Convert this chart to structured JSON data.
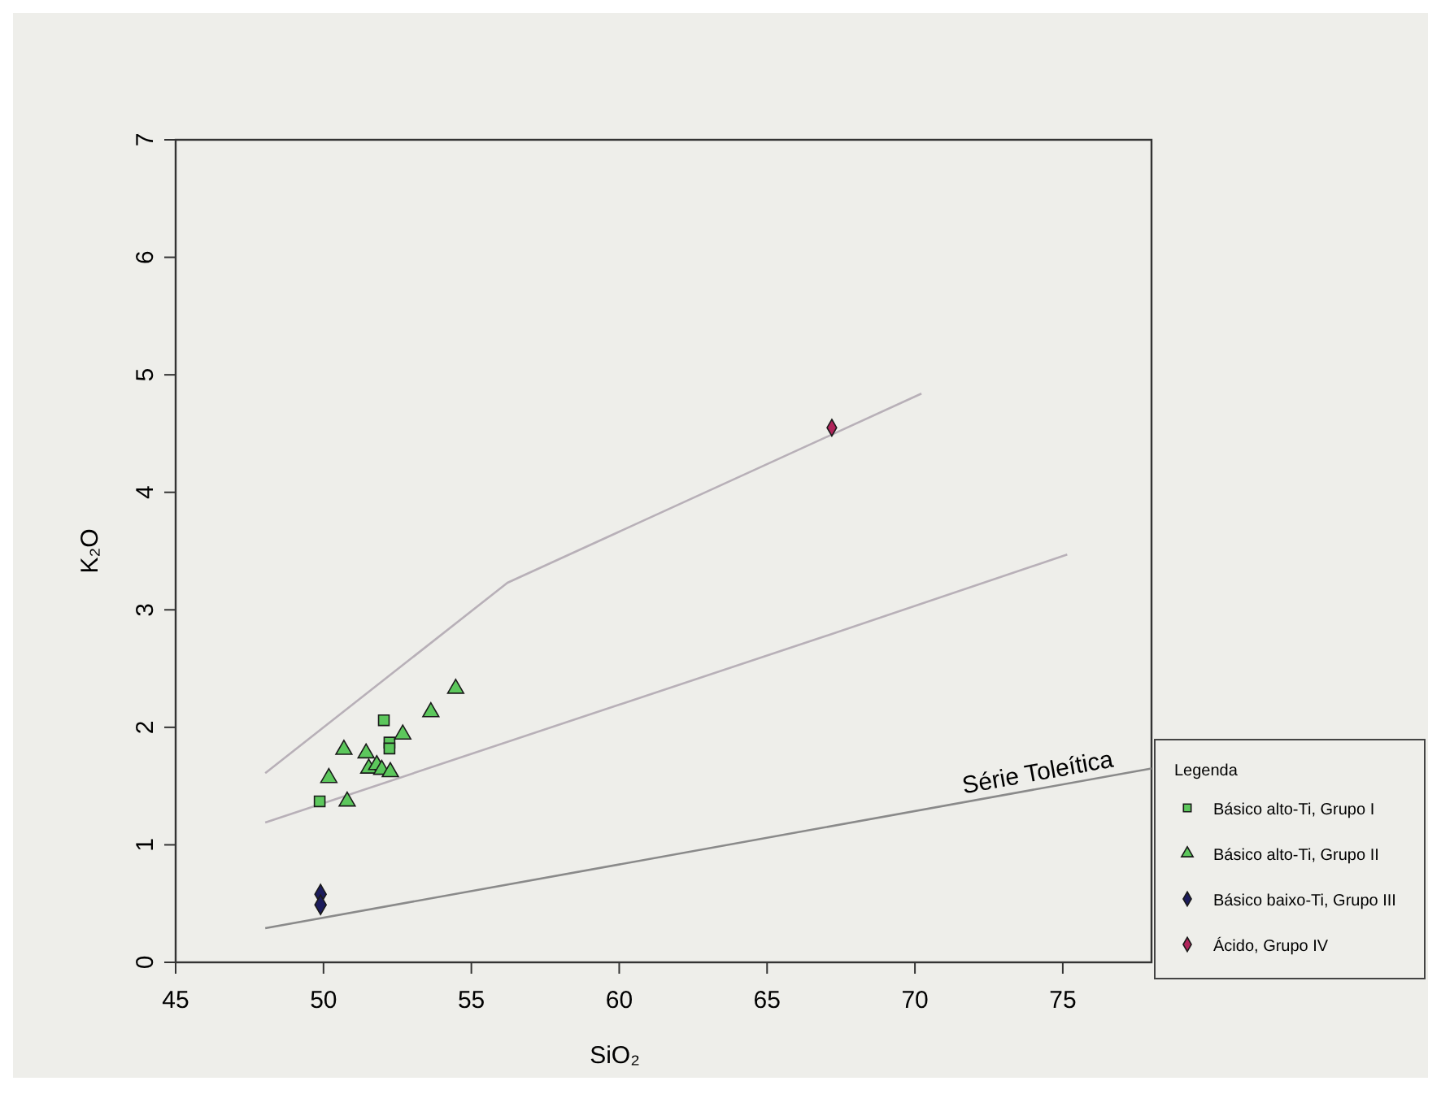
{
  "chart_data": {
    "type": "scatter",
    "xlabel": "SiO₂",
    "ylabel": "K₂O",
    "legend_title": "Legenda",
    "legend": "bottom right",
    "grid": false,
    "xlim": [
      45,
      78
    ],
    "xticks": [
      45,
      50,
      55,
      60,
      65,
      70,
      75
    ],
    "ylim": [
      0,
      7
    ],
    "yticks": [
      0,
      1,
      2,
      3,
      4,
      5,
      6,
      7
    ],
    "series": [
      {
        "name": "Básico alto-Ti, Grupo I",
        "color": "#5cc75c",
        "marker": "square",
        "x": [
          49.87,
          52.04,
          52.23,
          52.23
        ],
        "values": [
          1.37,
          2.06,
          1.87,
          1.82
        ]
      },
      {
        "name": "Básico alto-Ti, Grupo II",
        "color": "#5cc75c",
        "marker": "triangle",
        "x": [
          50.18,
          50.69,
          50.8,
          51.44,
          51.53,
          51.8,
          51.97,
          52.26,
          52.68,
          53.63,
          54.47
        ],
        "values": [
          1.57,
          1.81,
          1.37,
          1.78,
          1.65,
          1.68,
          1.64,
          1.62,
          1.94,
          2.13,
          2.33
        ]
      },
      {
        "name": "Básico baixo-Ti, Grupo III",
        "color": "#1c1c5c",
        "marker": "diamond",
        "x": [
          49.9,
          49.9
        ],
        "values": [
          0.58,
          0.49
        ]
      },
      {
        "name": "Ácido, Grupo IV",
        "color": "#b0245a",
        "marker": "diamond",
        "x": [
          67.19
        ],
        "values": [
          4.55
        ]
      },
      {
        "type": "line",
        "color": "#b8b0b8",
        "marker": "none",
        "x": [
          48.03,
          56.22,
          70.22
        ],
        "values": [
          1.61,
          3.23,
          4.84
        ]
      },
      {
        "type": "line",
        "color": "#b8b0b8",
        "marker": "none",
        "x": [
          48.03,
          66.9,
          75.15
        ],
        "values": [
          1.19,
          2.77,
          3.47
        ]
      },
      {
        "type": "line",
        "color": "#8a8a8a",
        "marker": "none",
        "x": [
          48.03,
          78
        ],
        "values": [
          0.29,
          1.65
        ]
      }
    ],
    "annotations": [
      {
        "text": "Série Toleítica",
        "x": 74.2,
        "y": 1.55
      }
    ]
  }
}
